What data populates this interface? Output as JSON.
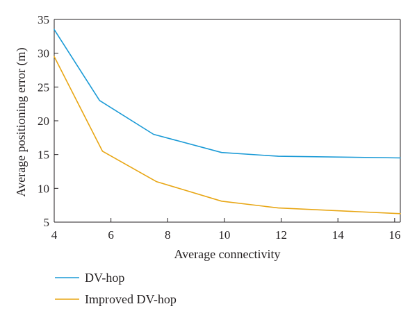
{
  "chart_data": {
    "type": "line",
    "xlabel": "Average connectivity",
    "ylabel": "Average positioning error (m)",
    "xlim": [
      4,
      16.2
    ],
    "ylim": [
      5,
      35
    ],
    "xticks": [
      4,
      6,
      8,
      10,
      12,
      14,
      16
    ],
    "yticks": [
      5,
      10,
      15,
      20,
      25,
      30,
      35
    ],
    "grid": false,
    "legend_position": "bottom-left, below plot",
    "series": [
      {
        "name": "DV-hop",
        "color": "#1a9ad6",
        "points": [
          {
            "x": 4,
            "y": 33.5
          },
          {
            "x": 5.6,
            "y": 23.0
          },
          {
            "x": 7.5,
            "y": 18.0
          },
          {
            "x": 9.9,
            "y": 15.3
          },
          {
            "x": 11.9,
            "y": 14.75
          },
          {
            "x": 16.2,
            "y": 14.5
          }
        ]
      },
      {
        "name": "Improved DV-hop",
        "color": "#e8a614",
        "points": [
          {
            "x": 4,
            "y": 29.5
          },
          {
            "x": 5.7,
            "y": 15.5
          },
          {
            "x": 7.6,
            "y": 11.0
          },
          {
            "x": 9.9,
            "y": 8.1
          },
          {
            "x": 11.9,
            "y": 7.1
          },
          {
            "x": 16.2,
            "y": 6.25
          }
        ]
      }
    ]
  }
}
